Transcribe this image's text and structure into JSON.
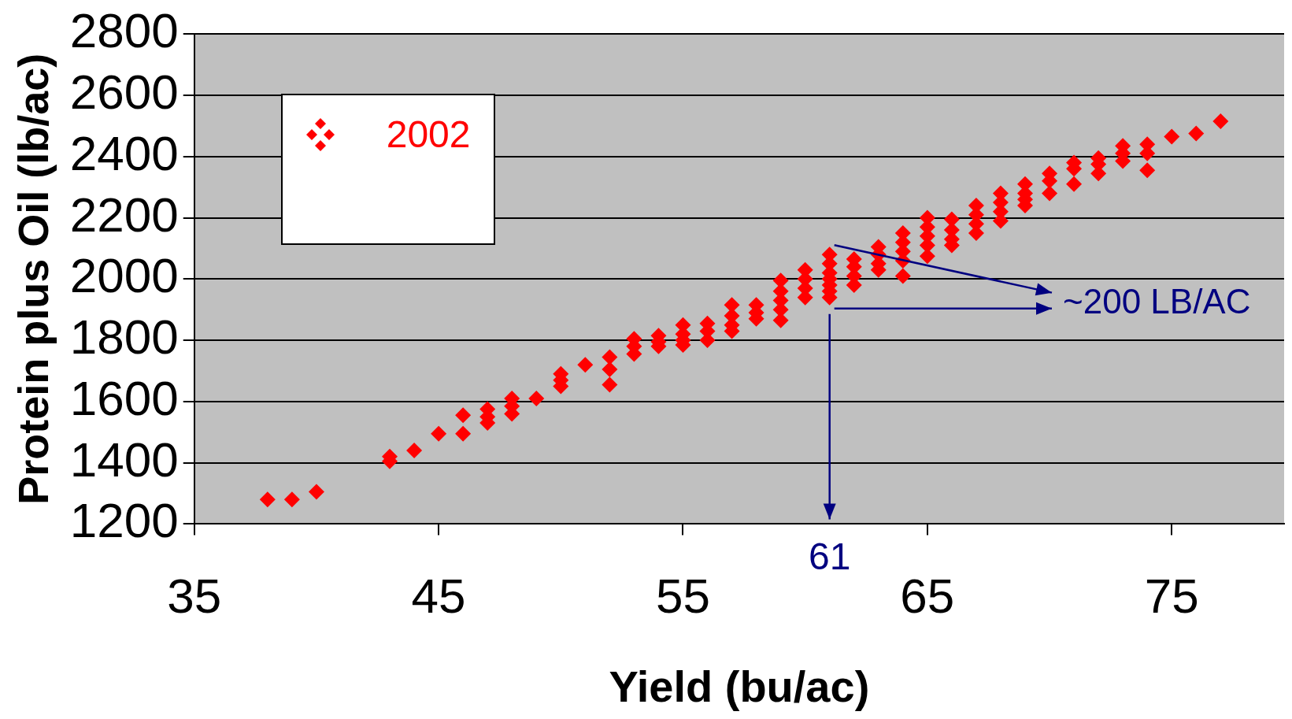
{
  "chart_data": {
    "type": "scatter",
    "xlabel": "Yield (bu/ac)",
    "ylabel": "Protein plus Oil (lb/ac)",
    "xlim": [
      35,
      79.6
    ],
    "xticks": [
      35,
      45,
      55,
      65,
      75
    ],
    "ylim": [
      1200,
      2800
    ],
    "yticks": [
      1200,
      1400,
      1600,
      1800,
      2000,
      2200,
      2400,
      2600,
      2800
    ],
    "grid": "y",
    "legend": "top left",
    "marker": "diamond",
    "annotations": [
      "~200 LB/AC",
      {
        "text": "61",
        "x": 61
      }
    ],
    "series": [
      {
        "name": "2002",
        "color": "#ff0000",
        "x": [
          38,
          39,
          40,
          43,
          43,
          44,
          45,
          46,
          46,
          47,
          47,
          47,
          48,
          48,
          48,
          49,
          50,
          50,
          50,
          51,
          52,
          52,
          52,
          53,
          53,
          53,
          54,
          54,
          54,
          55,
          55,
          55,
          55,
          56,
          56,
          56,
          57,
          57,
          57,
          57,
          58,
          58,
          58,
          59,
          59,
          59,
          59,
          59,
          60,
          60,
          60,
          60,
          61,
          61,
          61,
          61,
          61,
          61,
          61,
          62,
          62,
          62,
          62,
          63,
          63,
          63,
          63,
          64,
          64,
          64,
          64,
          64,
          65,
          65,
          65,
          65,
          65,
          66,
          66,
          66,
          66,
          67,
          67,
          67,
          67,
          68,
          68,
          68,
          68,
          69,
          69,
          69,
          69,
          70,
          70,
          70,
          71,
          71,
          71,
          72,
          72,
          72,
          73,
          73,
          73,
          74,
          74,
          74,
          75,
          76,
          77
        ],
        "values": [
          1280,
          1280,
          1305,
          1420,
          1405,
          1440,
          1495,
          1555,
          1495,
          1575,
          1550,
          1530,
          1610,
          1585,
          1560,
          1610,
          1690,
          1670,
          1650,
          1720,
          1745,
          1705,
          1655,
          1805,
          1780,
          1755,
          1815,
          1795,
          1780,
          1850,
          1820,
          1800,
          1785,
          1855,
          1830,
          1800,
          1915,
          1880,
          1850,
          1830,
          1915,
          1890,
          1870,
          1995,
          1960,
          1930,
          1900,
          1865,
          2030,
          2000,
          1970,
          1940,
          2080,
          2050,
          2020,
          2000,
          1980,
          1960,
          1940,
          2065,
          2040,
          2010,
          1980,
          2105,
          2080,
          2050,
          2030,
          2150,
          2120,
          2090,
          2060,
          2010,
          2200,
          2170,
          2140,
          2110,
          2075,
          2195,
          2160,
          2130,
          2110,
          2240,
          2210,
          2180,
          2150,
          2280,
          2250,
          2220,
          2190,
          2310,
          2280,
          2260,
          2240,
          2345,
          2320,
          2280,
          2380,
          2360,
          2310,
          2395,
          2375,
          2345,
          2435,
          2410,
          2385,
          2440,
          2410,
          2355,
          2465,
          2475,
          2515
        ]
      }
    ]
  }
}
